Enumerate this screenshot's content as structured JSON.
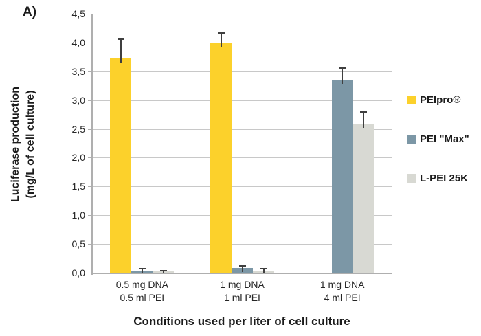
{
  "figure_label": "A)",
  "chart_data": {
    "type": "bar",
    "title": "",
    "xlabel": "Conditions used per liter of cell culture",
    "ylabel_line1": "Luciferase production",
    "ylabel_line2": "(mg/L of cell culture)",
    "categories": [
      [
        "0.5 mg DNA",
        "0.5 ml PEI"
      ],
      [
        "1 mg DNA",
        "1 ml PEI"
      ],
      [
        "1 mg DNA",
        "4 ml PEI"
      ]
    ],
    "series": [
      {
        "name": "PEIpro®",
        "color": "#FCD12B",
        "values": [
          3.72,
          3.99,
          null
        ],
        "errors": [
          0.34,
          0.17,
          null
        ]
      },
      {
        "name": "PEI \"Max\"",
        "color": "#7C97A6",
        "values": [
          0.04,
          0.08,
          3.36
        ],
        "errors": [
          0.03,
          0.04,
          0.2
        ]
      },
      {
        "name": "L-PEI 25K",
        "color": "#D8D9D3",
        "values": [
          0.02,
          0.04,
          2.58
        ],
        "errors": [
          0.02,
          0.03,
          0.21
        ]
      }
    ],
    "ylim": [
      0,
      4.5
    ],
    "ytick_step": 0.5,
    "ytick_labels": [
      "0,0",
      "0,5",
      "1,0",
      "1,5",
      "2,0",
      "2,5",
      "3,0",
      "3,5",
      "4,0",
      "4,5"
    ],
    "grid": true,
    "legend_position": "right",
    "colors": {
      "gridline": "#c8c8c8",
      "axis": "#afafaf",
      "error_bar": "#3f3f3f",
      "text": "#1c1c1c"
    }
  }
}
